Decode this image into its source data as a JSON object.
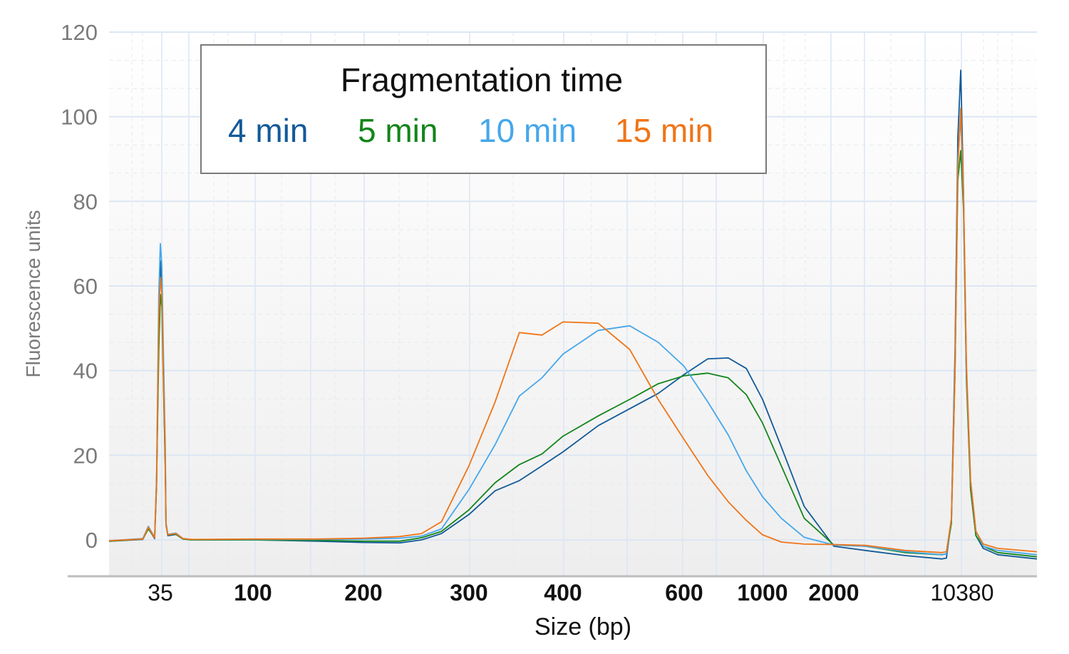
{
  "chart_data": {
    "type": "line",
    "title": "",
    "xlabel": "Size (bp)",
    "ylabel": "Fluorescence units",
    "ylim": [
      -8.6,
      120
    ],
    "yticks": [
      0,
      20,
      40,
      60,
      80,
      100,
      120
    ],
    "xtick_labels": [
      "35",
      "100",
      "200",
      "300",
      "400",
      "600",
      "1000",
      "2000",
      "10380"
    ],
    "xlim": [
      20,
      27000
    ],
    "grid": true,
    "legend": {
      "title": "Fragmentation time",
      "placement": "top-center",
      "entries": [
        "4 min",
        "5 min",
        "10 min",
        "15 min"
      ]
    },
    "x": [
      20,
      28.9,
      30.7,
      32.9,
      33.6,
      34.4,
      35,
      35.6,
      36.2,
      37.0,
      37.3,
      38.1,
      41.7,
      45.3,
      50,
      100,
      150,
      200,
      230,
      250,
      270,
      300,
      325,
      350,
      375,
      400,
      450,
      500,
      550,
      600,
      700,
      800,
      900,
      1000,
      1200,
      1500,
      2000,
      3000,
      5000,
      8000,
      8490,
      9050,
      9480,
      9830,
      10200,
      10570,
      10960,
      11570,
      12390,
      13600,
      16370,
      27000
    ],
    "series": [
      {
        "name": "4 min",
        "color": "#125a98",
        "values": [
          -0.3,
          0.1,
          2.8,
          0.3,
          13,
          50,
          66,
          60,
          40,
          18,
          4,
          1.0,
          1.3,
          0.2,
          0,
          0,
          -0.3,
          -0.6,
          -0.7,
          0,
          1.5,
          6.0,
          11.6,
          14,
          17.5,
          20.8,
          27,
          31,
          34.6,
          39.1,
          42.8,
          43,
          40.5,
          33.2,
          22,
          7.9,
          -1.5,
          -2.5,
          -3.7,
          -4.5,
          -4.3,
          5,
          45,
          95,
          111,
          82,
          40,
          12,
          1,
          -2,
          -3.5,
          -4.5
        ]
      },
      {
        "name": "5 min",
        "color": "#13851a",
        "values": [
          -0.3,
          0.2,
          2.6,
          0.5,
          14,
          45,
          58,
          55,
          38,
          17,
          3.5,
          1.2,
          1.4,
          0.2,
          0,
          0,
          -0.1,
          -0.3,
          -0.3,
          0.5,
          2.0,
          7.1,
          13.5,
          17.8,
          20.3,
          24.5,
          29.3,
          33.2,
          36.9,
          38.8,
          39.4,
          38.3,
          34.3,
          27.6,
          17.5,
          5.1,
          -1.2,
          -1.5,
          -3,
          -3.5,
          -3.3,
          4,
          40,
          85,
          92,
          78,
          38,
          12,
          1,
          -1.5,
          -3,
          -4
        ]
      },
      {
        "name": "10 min",
        "color": "#46a7ea",
        "values": [
          -0.2,
          0.3,
          3.2,
          0.6,
          15,
          58,
          70,
          65,
          45,
          22,
          4,
          1.3,
          1.6,
          0.3,
          0.1,
          0.1,
          0.1,
          0.2,
          0.4,
          0.9,
          2.6,
          11.9,
          22.5,
          34,
          38.3,
          43.9,
          49.5,
          50.6,
          46.7,
          41,
          32.6,
          24.8,
          16.3,
          10.2,
          5.1,
          0.6,
          -1.2,
          -1.5,
          -2.8,
          -3.5,
          -3.3,
          5,
          42,
          90,
          100,
          80,
          40,
          14,
          2,
          -1.5,
          -2.5,
          -3.5
        ]
      },
      {
        "name": "15 min",
        "color": "#ef7518",
        "values": [
          -0.2,
          0.2,
          3.0,
          0.5,
          14,
          52,
          62,
          58,
          40,
          20,
          3.5,
          1.2,
          1.5,
          0.3,
          0.1,
          0.2,
          0.2,
          0.4,
          0.8,
          1.5,
          4.3,
          17.5,
          32.6,
          49,
          48.4,
          51.5,
          51.2,
          45,
          33.2,
          23.7,
          15.2,
          9,
          4.6,
          1.2,
          -0.5,
          -1,
          -1.1,
          -1.3,
          -2.5,
          -3,
          -2.8,
          5,
          40,
          88,
          102,
          82,
          42,
          14,
          2,
          -1,
          -2,
          -2.8
        ]
      }
    ]
  }
}
